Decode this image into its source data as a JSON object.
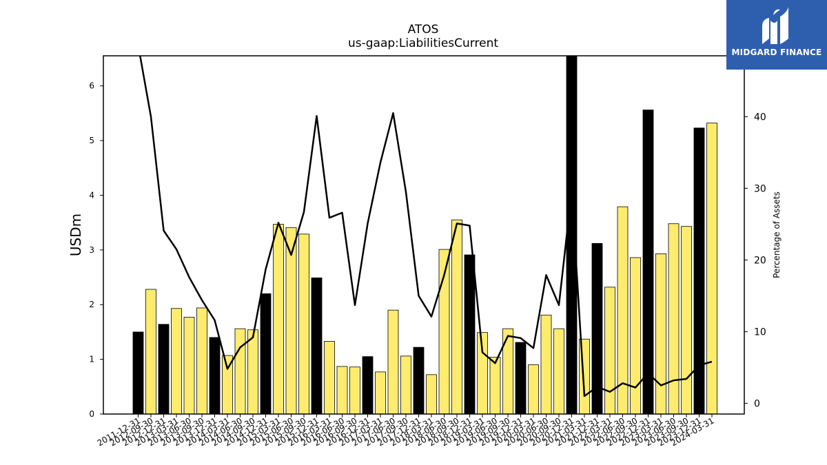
{
  "chart_data": {
    "type": "bar",
    "title": "ATOS",
    "subtitle": "us-gaap:LiabilitiesCurrent",
    "ylabel": "USDm",
    "y2label": "Percentage of Assets",
    "ylim": [
      0,
      6.55
    ],
    "y2lim": [
      -1.5,
      48.5
    ],
    "yticks": [
      0,
      1,
      2,
      3,
      4,
      5,
      6
    ],
    "y2ticks": [
      0,
      10,
      20,
      30,
      40
    ],
    "colors": {
      "q4": "#000000",
      "other": "#ffec6e",
      "line": "#000000"
    },
    "categories": [
      "2011-12-31",
      "2012-09-30",
      "2012-12-31",
      "2013-03-31",
      "2013-06-30",
      "2013-09-30",
      "2013-12-31",
      "2014-03-31",
      "2014-06-30",
      "2014-09-30",
      "2014-12-31",
      "2015-03-31",
      "2015-06-30",
      "2015-09-30",
      "2015-12-31",
      "2016-03-31",
      "2016-06-30",
      "2016-09-30",
      "2016-12-31",
      "2017-03-31",
      "2017-06-30",
      "2017-09-30",
      "2017-12-31",
      "2018-03-31",
      "2018-06-30",
      "2018-09-30",
      "2018-12-31",
      "2019-03-31",
      "2019-06-30",
      "2019-09-30",
      "2019-12-31",
      "2020-03-31",
      "2020-06-30",
      "2020-09-30",
      "2020-12-31",
      "2021-03-31",
      "2021-12-31",
      "2022-03-31",
      "2022-06-30",
      "2022-09-30",
      "2022-12-31",
      "2023-03-31",
      "2023-06-30",
      "2023-09-30",
      "2023-12-31",
      "2024-03-31"
    ],
    "series": [
      {
        "type": "bar",
        "values": [
          1.5,
          2.28,
          1.64,
          1.93,
          1.77,
          1.94,
          1.4,
          1.07,
          1.56,
          1.54,
          2.2,
          3.47,
          3.41,
          3.29,
          2.49,
          1.33,
          0.87,
          0.86,
          1.05,
          0.77,
          1.9,
          1.06,
          1.22,
          0.72,
          3.01,
          3.55,
          2.91,
          1.49,
          1.04,
          1.56,
          1.31,
          0.9,
          1.81,
          1.56,
          6.6,
          1.37,
          3.12,
          2.32,
          3.79,
          2.86,
          5.56,
          2.93,
          3.48,
          3.43,
          5.23,
          5.32
        ]
      },
      {
        "type": "line",
        "axis": "right",
        "values": [
          50,
          40,
          24.1,
          21.5,
          17.6,
          14.4,
          11.6,
          4.8,
          7.8,
          9.2,
          18.7,
          25.2,
          20.7,
          26.7,
          40.1,
          25.9,
          26.6,
          13.7,
          25.1,
          33.6,
          40.5,
          29.5,
          15,
          12.1,
          17.9,
          25.1,
          24.8,
          7.1,
          5.6,
          9.4,
          9.1,
          7.7,
          17.9,
          13.7,
          29.6,
          1,
          2.3,
          1.6,
          2.8,
          2.2,
          4.2,
          2.5,
          3.2,
          3.4,
          5.3,
          5.8
        ]
      }
    ]
  },
  "logo": {
    "text": "MIDGARD FINANCE"
  }
}
